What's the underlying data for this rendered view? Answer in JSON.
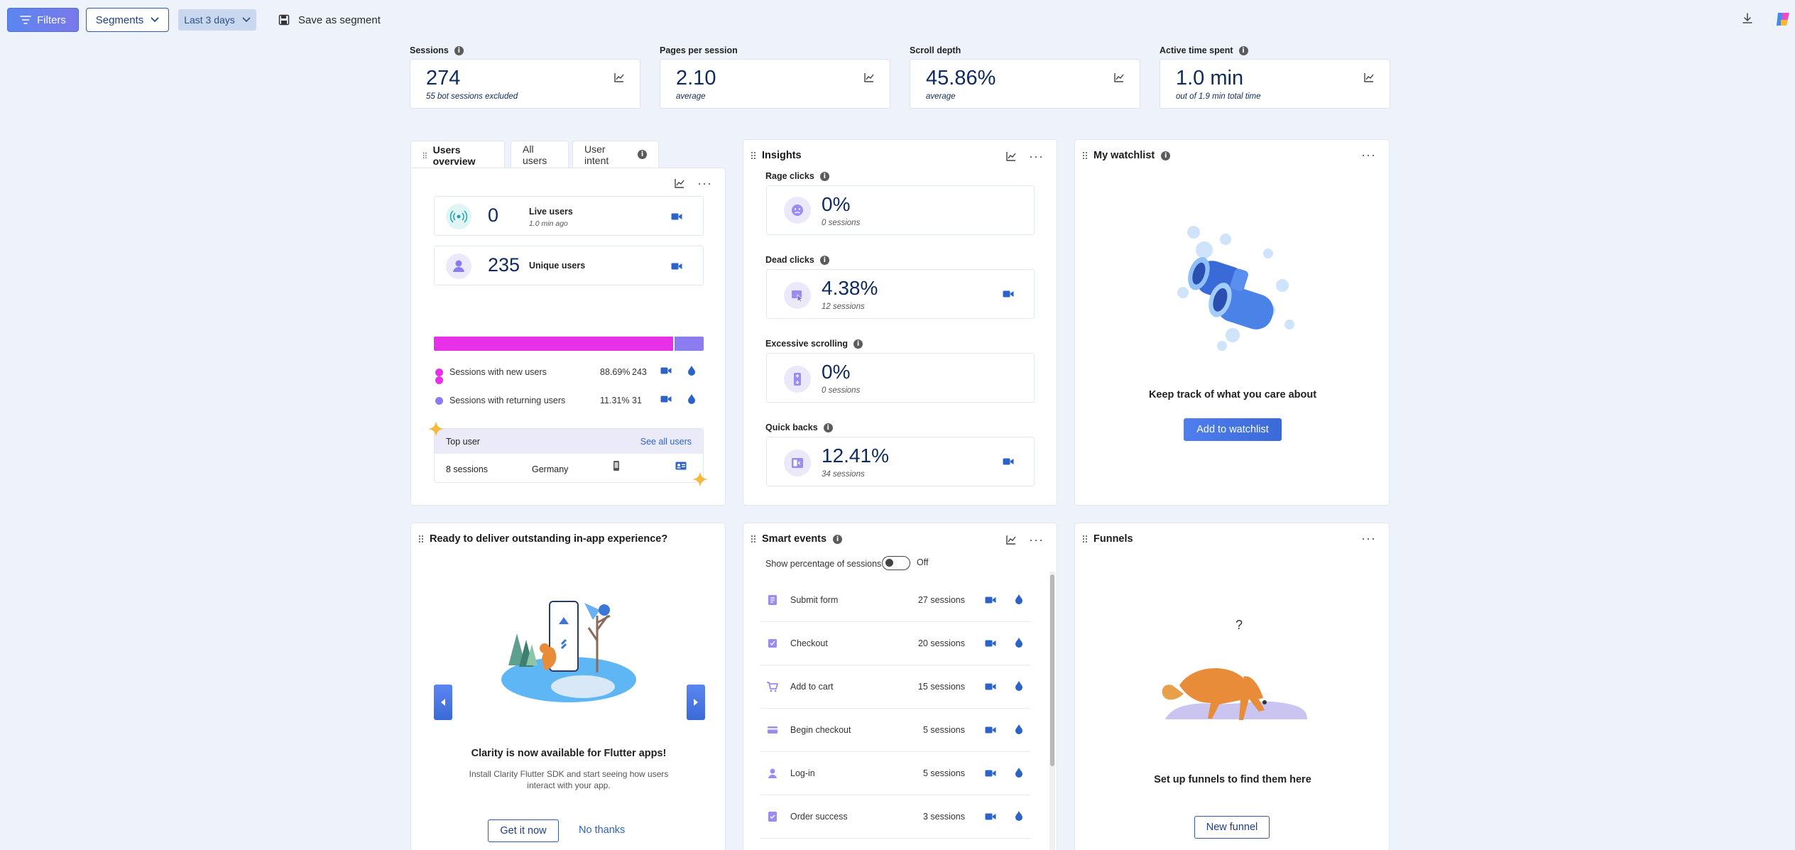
{
  "toolbar": {
    "filters": "Filters",
    "segments": "Segments",
    "date_range": "Last 3 days",
    "save_segment": "Save as segment"
  },
  "kpis": [
    {
      "label": "Sessions",
      "value": "274",
      "sub": "55 bot sessions excluded",
      "info": true
    },
    {
      "label": "Pages per session",
      "value": "2.10",
      "sub": "average",
      "info": false
    },
    {
      "label": "Scroll depth",
      "value": "45.86%",
      "sub": "average",
      "info": false
    },
    {
      "label": "Active time spent",
      "value": "1.0 min",
      "sub": "out of 1.9 min total time",
      "info": true
    }
  ],
  "users_overview": {
    "tabs": [
      "Users overview",
      "All users",
      "User intent"
    ],
    "live": {
      "value": "0",
      "label": "Live users",
      "sub": "1.0 min ago"
    },
    "unique": {
      "value": "235",
      "label": "Unique users"
    },
    "bar": {
      "new_fraction": 0.8869,
      "new_color": "#e830e8",
      "returning_color": "#8b7cf0"
    },
    "legend": [
      {
        "label": "Sessions with new users",
        "pct": "88.69%",
        "count": "243",
        "color": "#e830e8"
      },
      {
        "label": "Sessions with returning users",
        "pct": "11.31%",
        "count": "31",
        "color": "#8b7cf0"
      }
    ],
    "top_user": {
      "title": "Top user",
      "link": "See all users",
      "sessions": "8 sessions",
      "country": "Germany"
    }
  },
  "insights": {
    "title": "Insights",
    "items": [
      {
        "label": "Rage clicks",
        "value": "0%",
        "sub": "0 sessions",
        "video": false
      },
      {
        "label": "Dead clicks",
        "value": "4.38%",
        "sub": "12 sessions",
        "video": true
      },
      {
        "label": "Excessive scrolling",
        "value": "0%",
        "sub": "0 sessions",
        "video": false
      },
      {
        "label": "Quick backs",
        "value": "12.41%",
        "sub": "34 sessions",
        "video": true
      }
    ]
  },
  "watchlist": {
    "title": "My watchlist",
    "message": "Keep track of what you care about",
    "button": "Add to watchlist"
  },
  "promo": {
    "title": "Ready to deliver outstanding in-app experience?",
    "headline": "Clarity is now available for Flutter apps!",
    "body": "Install Clarity Flutter SDK and start seeing how users interact with your app.",
    "primary": "Get it now",
    "secondary": "No thanks"
  },
  "smart_events": {
    "title": "Smart events",
    "toggle_label": "Show percentage of sessions",
    "toggle_state": "Off",
    "events": [
      {
        "name": "Submit form",
        "count": "27 sessions"
      },
      {
        "name": "Checkout",
        "count": "20 sessions"
      },
      {
        "name": "Add to cart",
        "count": "15 sessions"
      },
      {
        "name": "Begin checkout",
        "count": "5 sessions"
      },
      {
        "name": "Log-in",
        "count": "5 sessions"
      },
      {
        "name": "Order success",
        "count": "3 sessions"
      }
    ]
  },
  "funnels": {
    "title": "Funnels",
    "question": "?",
    "message": "Set up funnels to find them here",
    "button": "New funnel"
  },
  "colors": {
    "accent": "#2e5aa8",
    "value_text": "#0f2a5e",
    "video_icon": "#2b63c8",
    "page_bg": "#eef3fb"
  }
}
